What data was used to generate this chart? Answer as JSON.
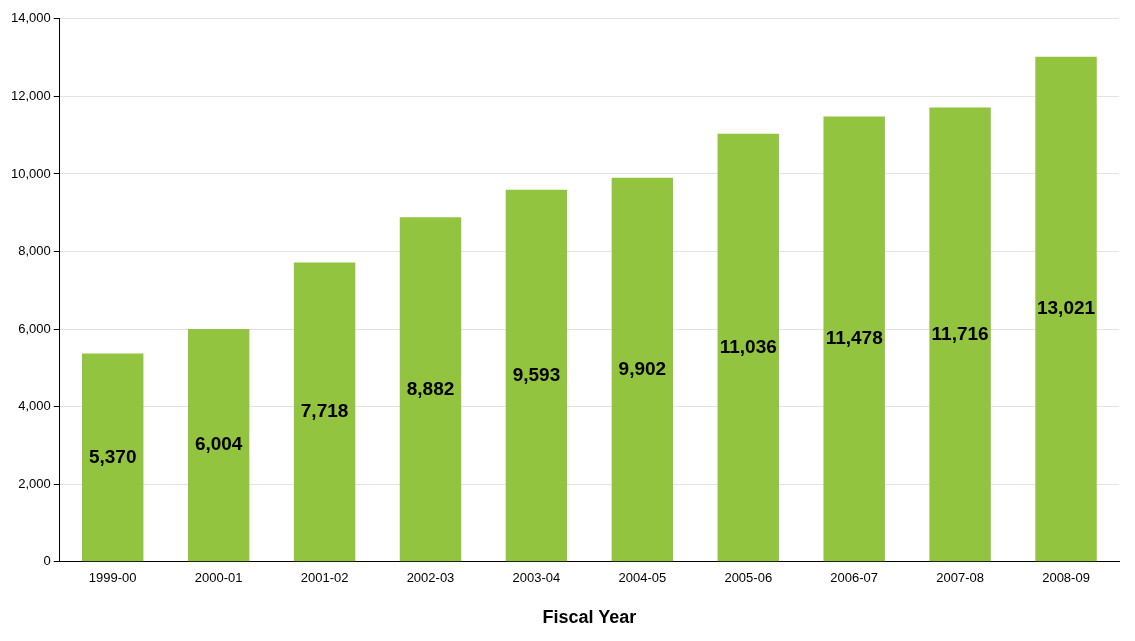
{
  "chart_data": {
    "type": "bar",
    "xlabel": "Fiscal Year",
    "categories": [
      "1999-00",
      "2000-01",
      "2001-02",
      "2002-03",
      "2003-04",
      "2004-05",
      "2005-06",
      "2006-07",
      "2007-08",
      "2008-09"
    ],
    "values": [
      5370,
      6004,
      7718,
      8882,
      9593,
      9902,
      11036,
      11478,
      11716,
      13021
    ],
    "color": "#93c43f",
    "ylim": [
      0,
      14000
    ],
    "yticks": [
      {
        "value": 0,
        "label": "0"
      },
      {
        "value": 2000,
        "label": "2,000"
      },
      {
        "value": 4000,
        "label": "4,000"
      },
      {
        "value": 6000,
        "label": "6,000"
      },
      {
        "value": 8000,
        "label": "8,000"
      },
      {
        "value": 10000,
        "label": "10,000"
      },
      {
        "value": 12000,
        "label": "12,000"
      },
      {
        "value": 14000,
        "label": "14,000"
      }
    ],
    "value_labels": [
      "5,370",
      "6,004",
      "7,718",
      "8,882",
      "9,593",
      "9,902",
      "11,036",
      "11,478",
      "11,716",
      "13,021"
    ],
    "grid": "y"
  }
}
